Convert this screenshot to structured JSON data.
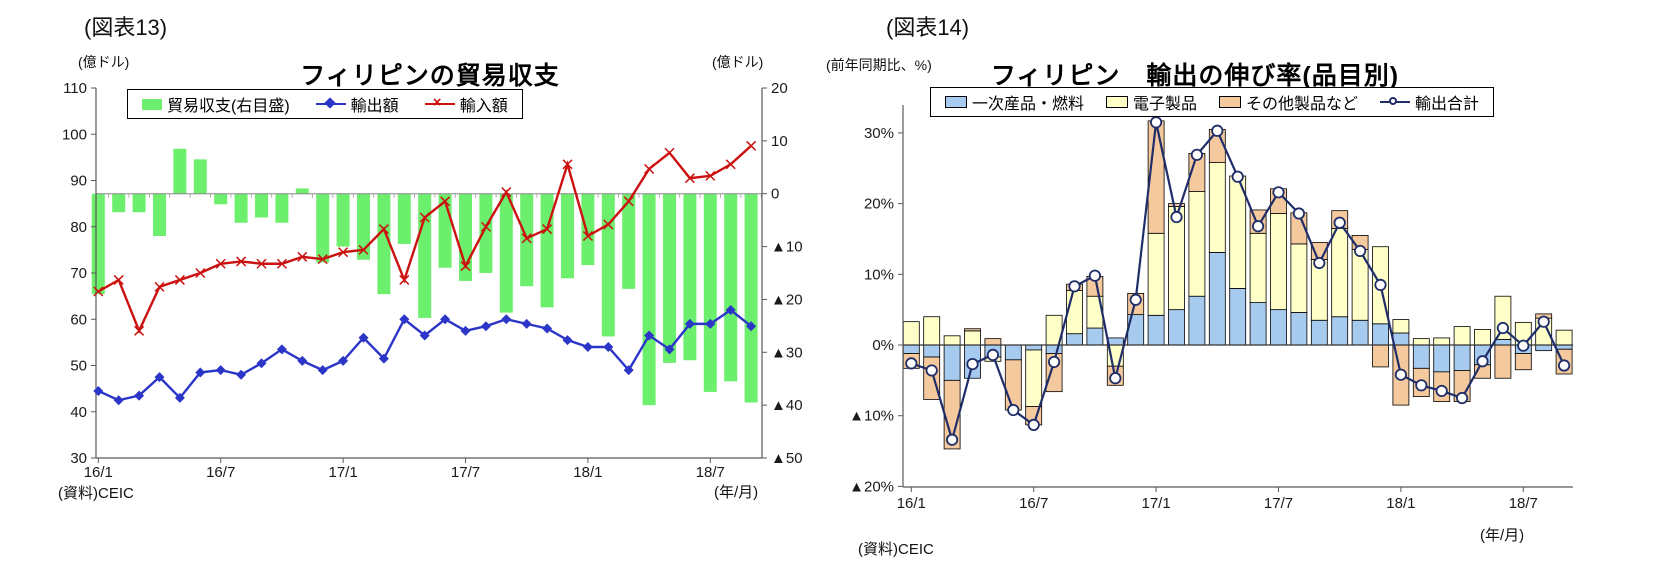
{
  "figure13": {
    "tag": "(図表13)",
    "title": "フィリピンの貿易収支",
    "unit_left": "(億ドル)",
    "unit_right": "(億ドル)",
    "legend": [
      "貿易収支(右目盛)",
      "輸出額",
      "輸入額"
    ],
    "source": "(資料)CEIC",
    "axis_note": "(年/月)"
  },
  "figure14": {
    "tag": "(図表14)",
    "title": "フィリピン　輸出の伸び率(品目別)",
    "unit": "(前年同期比、%)",
    "legend": [
      "一次産品・燃料",
      "電子製品",
      "その他製品など",
      "輸出合計"
    ],
    "source": "(資料)CEIC",
    "axis_note": "(年/月)"
  },
  "colors": {
    "balance_bar": "#6CEF6C",
    "export_line": "#2B35C8",
    "import_line": "#CC1111",
    "primary_goods": "#A7CBEE",
    "electronics": "#FFFFC8",
    "other_products": "#F5C99E",
    "total_line": "#1F2D69"
  },
  "chart_data": [
    {
      "id": "trade-balance",
      "type": "combo-bar-line",
      "title": "フィリピンの貿易収支",
      "categories": [
        "16/1",
        "16/2",
        "16/3",
        "16/4",
        "16/5",
        "16/6",
        "16/7",
        "16/8",
        "16/9",
        "16/10",
        "16/11",
        "16/12",
        "17/1",
        "17/2",
        "17/3",
        "17/4",
        "17/5",
        "17/6",
        "17/7",
        "17/8",
        "17/9",
        "17/10",
        "17/11",
        "17/12",
        "18/1",
        "18/2",
        "18/3",
        "18/4",
        "18/5",
        "18/6",
        "18/7",
        "18/8",
        "18/9"
      ],
      "x_tick_labels": [
        "16/1",
        "16/7",
        "17/1",
        "17/7",
        "18/1",
        "18/7"
      ],
      "x_tick_every": 6,
      "left_axis": {
        "unit": "(億ドル)",
        "min": 30,
        "max": 110,
        "ticks": [
          110,
          100,
          90,
          80,
          70,
          60,
          50,
          40,
          30
        ]
      },
      "right_axis": {
        "unit": "(億ドル)",
        "min": -50,
        "max": 20,
        "ticks": [
          20,
          10,
          0,
          -10,
          -20,
          -30,
          -40,
          -50
        ]
      },
      "grid": false,
      "legend_position": "top",
      "series": [
        {
          "name": "貿易収支(右目盛)",
          "type": "bar",
          "axis": "right",
          "color": "#6CEF6C",
          "values": [
            -19,
            -3.5,
            -3.5,
            -8,
            8.5,
            6.5,
            -2,
            -5.5,
            -4.5,
            -5.5,
            1,
            -13,
            -10,
            -12.5,
            -19,
            -9.5,
            -23.5,
            -14,
            -16.5,
            -15,
            -22.5,
            -17.5,
            -21.5,
            -16,
            -13.5,
            -27,
            -18,
            -40,
            -32,
            -31.5,
            -37.5,
            -35.5,
            -39.5
          ]
        },
        {
          "name": "輸出額",
          "type": "line",
          "axis": "left",
          "color": "#2B35C8",
          "marker": "diamond",
          "values": [
            44.5,
            42.5,
            43.5,
            47.5,
            43,
            48.5,
            49,
            48,
            50.5,
            53.5,
            51,
            49,
            51,
            56,
            51.5,
            60,
            56.5,
            60,
            57.5,
            58.5,
            60,
            59,
            58,
            55.5,
            54,
            54,
            49,
            56.5,
            53.5,
            59,
            59,
            62,
            58.5
          ]
        },
        {
          "name": "輸入額",
          "type": "line",
          "axis": "left",
          "color": "#CC1111",
          "marker": "x",
          "values": [
            66,
            68.5,
            57.5,
            67,
            68.5,
            70,
            72,
            72.5,
            72,
            72,
            73.5,
            73,
            74.5,
            75,
            79.5,
            68.5,
            82,
            85.5,
            71.5,
            80,
            87.5,
            77.5,
            79.5,
            93.5,
            78,
            80.5,
            85.5,
            92.5,
            96,
            90.5,
            91,
            93.5,
            97.5
          ]
        }
      ]
    },
    {
      "id": "export-growth",
      "type": "stacked-bar-line",
      "title": "フィリピン　輸出の伸び率(品目別)",
      "categories": [
        "16/1",
        "16/2",
        "16/3",
        "16/4",
        "16/5",
        "16/6",
        "16/7",
        "16/8",
        "16/9",
        "16/10",
        "16/11",
        "16/12",
        "17/1",
        "17/2",
        "17/3",
        "17/4",
        "17/5",
        "17/6",
        "17/7",
        "17/8",
        "17/9",
        "17/10",
        "17/11",
        "17/12",
        "18/1",
        "18/2",
        "18/3",
        "18/4",
        "18/5",
        "18/6",
        "18/7",
        "18/8",
        "18/9"
      ],
      "x_tick_labels": [
        "16/1",
        "16/7",
        "17/1",
        "17/7",
        "18/1",
        "18/7"
      ],
      "x_tick_every": 6,
      "y_axis": {
        "unit": "(前年同期比、%)",
        "min": -20,
        "max": 34,
        "ticks": [
          30,
          20,
          10,
          0,
          -10,
          -20
        ],
        "tick_suffix": "%"
      },
      "grid": false,
      "legend_position": "top",
      "series": [
        {
          "name": "一次産品・燃料",
          "type": "bar",
          "color": "#A7CBEE",
          "values": [
            -1.2,
            -1.7,
            -5,
            -4.7,
            -1.7,
            -2.1,
            -0.7,
            -1.2,
            1.6,
            2.4,
            1,
            4.3,
            4.2,
            5,
            6.9,
            13.1,
            8,
            6,
            5,
            4.6,
            3.5,
            4,
            3.5,
            3,
            1.7,
            -3.3,
            -3.8,
            -3.6,
            -2.8,
            0.8,
            -1.2,
            -0.8,
            -0.6
          ]
        },
        {
          "name": "電子製品",
          "type": "bar",
          "color": "#FFFFC8",
          "values": [
            3.3,
            4,
            1.3,
            2,
            -0.6,
            0,
            -8,
            4.2,
            6.1,
            4.5,
            -3,
            0,
            11.6,
            14.6,
            14.8,
            12.7,
            15.9,
            9.8,
            13.6,
            9.7,
            8.6,
            12.5,
            10,
            10.9,
            1.9,
            0.9,
            1,
            2.6,
            2.2,
            6.1,
            3.2,
            3.8,
            2.1
          ]
        },
        {
          "name": "その他製品など",
          "type": "bar",
          "color": "#F5C99E",
          "values": [
            -2.1,
            -6,
            -9.7,
            0.3,
            0.9,
            -7.1,
            -2.6,
            -5.4,
            0.9,
            2.8,
            -2.7,
            3,
            15.9,
            0.4,
            5.4,
            4.7,
            0,
            3.3,
            3.5,
            4.4,
            2.4,
            2.5,
            2,
            -3.1,
            -8.5,
            -4,
            -4.2,
            -4.4,
            -1.9,
            -4.7,
            -2.3,
            0.6,
            -3.5
          ]
        },
        {
          "name": "輸出合計",
          "type": "line",
          "color": "#1F2D69",
          "marker": "circle",
          "values": [
            -2.6,
            -3.6,
            -13.4,
            -2.7,
            -1.4,
            -9.2,
            -11.3,
            -2.4,
            8.3,
            9.8,
            -4.7,
            6.4,
            31.5,
            18.1,
            26.9,
            30.3,
            23.8,
            16.8,
            21.6,
            18.6,
            11.6,
            17.3,
            13.3,
            8.5,
            -4.2,
            -5.7,
            -6.5,
            -7.5,
            -2.3,
            2.4,
            -0.1,
            3.3,
            -2.9
          ]
        }
      ]
    }
  ]
}
